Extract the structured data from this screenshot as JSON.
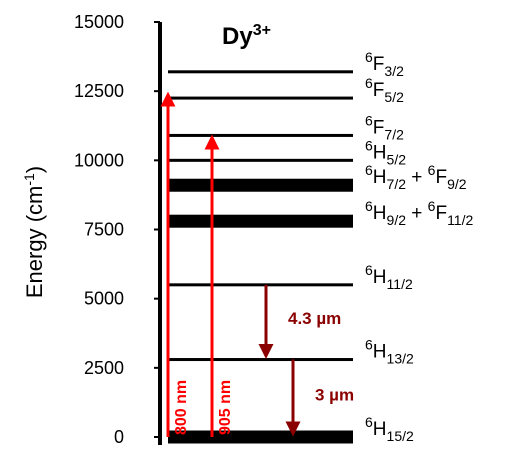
{
  "title": {
    "base": "Dy",
    "sup": "3+"
  },
  "y_axis": {
    "label": {
      "text": "Energy (cm",
      "sup": "-1",
      "close": ")"
    },
    "ylim": [
      0,
      15000
    ],
    "yticks": [
      0,
      2500,
      5000,
      7500,
      10000,
      12500,
      15000
    ]
  },
  "levels": [
    {
      "energy": 13200,
      "thick": false,
      "terms": [
        {
          "sup": "6",
          "base": "F",
          "sub": "3/2"
        }
      ]
    },
    {
      "energy": 12250,
      "thick": false,
      "terms": [
        {
          "sup": "6",
          "base": "F",
          "sub": "5/2"
        }
      ]
    },
    {
      "energy": 10900,
      "thick": false,
      "terms": [
        {
          "sup": "6",
          "base": "F",
          "sub": "7/2"
        }
      ]
    },
    {
      "energy": 10000,
      "thick": false,
      "terms": [
        {
          "sup": "6",
          "base": "H",
          "sub": "5/2"
        }
      ]
    },
    {
      "energy": 9100,
      "thick": true,
      "terms": [
        {
          "sup": "6",
          "base": "H",
          "sub": "7/2"
        },
        {
          "sup": "6",
          "base": "F",
          "sub": "9/2"
        }
      ]
    },
    {
      "energy": 7800,
      "thick": true,
      "terms": [
        {
          "sup": "6",
          "base": "H",
          "sub": "9/2"
        },
        {
          "sup": "6",
          "base": "F",
          "sub": "11/2"
        }
      ]
    },
    {
      "energy": 5500,
      "thick": false,
      "terms": [
        {
          "sup": "6",
          "base": "H",
          "sub": "11/2"
        }
      ]
    },
    {
      "energy": 2800,
      "thick": false,
      "terms": [
        {
          "sup": "6",
          "base": "H",
          "sub": "13/2"
        }
      ]
    },
    {
      "energy": 0,
      "thick": true,
      "terms": [
        {
          "sup": "6",
          "base": "H",
          "sub": "15/2"
        }
      ]
    }
  ],
  "arrows": [
    {
      "label": "800 nm",
      "start": 0,
      "end": 12500,
      "color": "#ff0000"
    },
    {
      "label": "905 nm",
      "start": 0,
      "end": 10950,
      "color": "#ff0000"
    },
    {
      "label": "4.3 µm",
      "start": 5500,
      "end": 2800,
      "color": "#8b0000"
    },
    {
      "label": "3 µm",
      "start": 2800,
      "end": 0,
      "color": "#8b0000"
    }
  ]
}
